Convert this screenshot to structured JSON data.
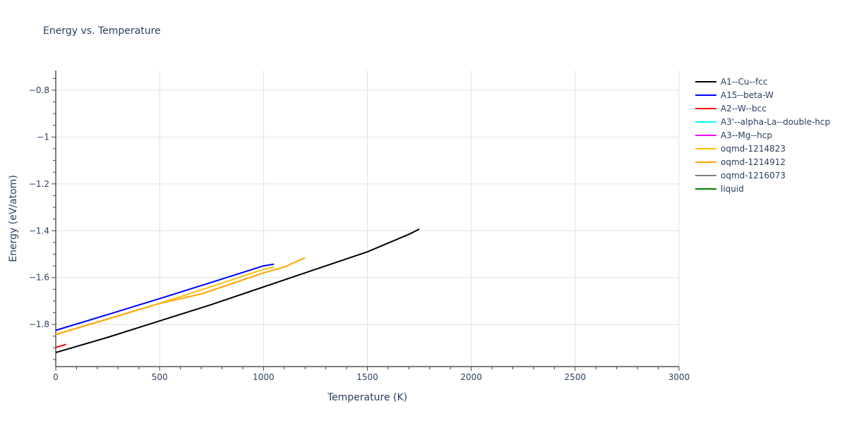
{
  "chart_data": {
    "type": "line",
    "title": "Energy vs. Temperature",
    "xlabel": "Temperature (K)",
    "ylabel": "Energy (eV/atom)",
    "xlim": [
      0,
      3000
    ],
    "ylim": [
      -1.98,
      -0.716
    ],
    "x_ticks": [
      0,
      500,
      1000,
      1500,
      2000,
      2500,
      3000
    ],
    "x_tick_labels": [
      "0",
      "500",
      "1000",
      "1500",
      "2000",
      "2500",
      "3000"
    ],
    "y_ticks": [
      -0.8,
      -1.0,
      -1.2,
      -1.4,
      -1.6,
      -1.8
    ],
    "y_tick_labels": [
      "−0.8",
      "−1",
      "−1.2",
      "−1.4",
      "−1.6",
      "−1.8"
    ],
    "grid": true,
    "legend_position": "right",
    "series": [
      {
        "name": "A1--Cu--fcc",
        "color": "#000000",
        "x": [
          0,
          250,
          500,
          750,
          1000,
          1250,
          1500,
          1700,
          1750
        ],
        "y": [
          -1.92,
          -1.855,
          -1.785,
          -1.715,
          -1.64,
          -1.565,
          -1.49,
          -1.415,
          -1.393
        ]
      },
      {
        "name": "A15--beta-W",
        "color": "#0000ff",
        "x": [
          0,
          250,
          500,
          750,
          1000,
          1050
        ],
        "y": [
          -1.825,
          -1.758,
          -1.69,
          -1.62,
          -1.55,
          -1.543
        ]
      },
      {
        "name": "A2--W--bcc",
        "color": "#ff0000",
        "x": [
          0,
          50
        ],
        "y": [
          -1.898,
          -1.885
        ]
      },
      {
        "name": "A3'--alpha-La--double-hcp",
        "color": "#00ffff",
        "x": [],
        "y": []
      },
      {
        "name": "A3--Mg--hcp",
        "color": "#ff00ff",
        "x": [],
        "y": []
      },
      {
        "name": "oqmd-1214823",
        "color": "#ffc000",
        "x": [
          0,
          250,
          500,
          750,
          1000,
          1050
        ],
        "y": [
          -1.843,
          -1.777,
          -1.71,
          -1.638,
          -1.565,
          -1.555
        ]
      },
      {
        "name": "oqmd-1214912",
        "color": "#ffa500",
        "x": [
          0,
          250,
          500,
          700,
          850,
          1000,
          1100,
          1200
        ],
        "y": [
          -1.843,
          -1.777,
          -1.71,
          -1.67,
          -1.625,
          -1.58,
          -1.555,
          -1.515
        ]
      },
      {
        "name": "oqmd-1216073",
        "color": "#808080",
        "x": [],
        "y": []
      },
      {
        "name": "liquid",
        "color": "#008000",
        "x": [],
        "y": []
      }
    ]
  }
}
